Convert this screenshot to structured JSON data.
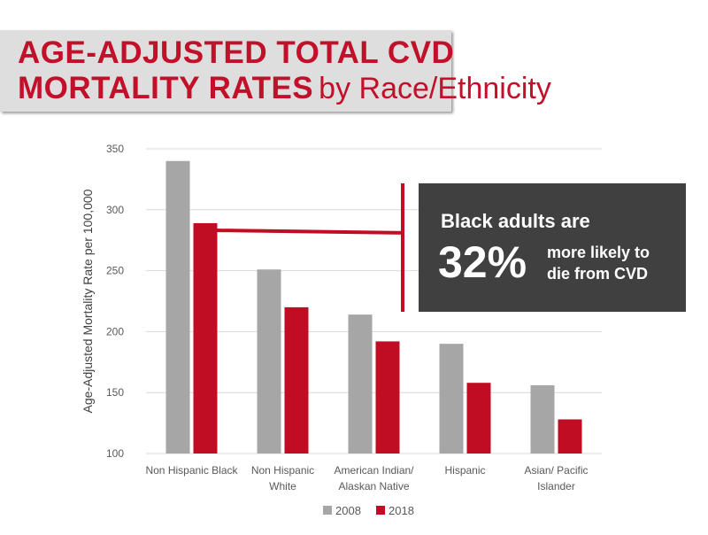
{
  "title": {
    "line1": "AGE-ADJUSTED TOTAL CVD",
    "line2_bold": "MORTALITY RATES",
    "line2_rest": "by Race/Ethnicity"
  },
  "callout": {
    "line1": "Black adults are",
    "percent": "32%",
    "line2": "more likely to",
    "line3": "die from CVD"
  },
  "colors": {
    "title": "#c3102a",
    "s2008": "#a6a6a6",
    "s2018": "#c00d23",
    "callout_bg": "#404040"
  },
  "chart_data": {
    "type": "bar",
    "categories": [
      [
        "Non Hispanic Black"
      ],
      [
        "Non Hispanic",
        "White"
      ],
      [
        "American Indian/",
        "Alaskan Native"
      ],
      [
        "Hispanic"
      ],
      [
        "Asian/ Pacific",
        "Islander"
      ]
    ],
    "series": [
      {
        "name": "2008",
        "values": [
          340,
          251,
          214,
          190,
          156
        ]
      },
      {
        "name": "2018",
        "values": [
          289,
          220,
          192,
          158,
          128
        ]
      }
    ],
    "ylabel": "Age-Adjusted Mortality Rate per 100,000",
    "ylim": [
      100,
      350
    ],
    "yticks": [
      "100",
      "150",
      "200",
      "250",
      "300",
      "350"
    ],
    "grid": true,
    "legend": "bottom"
  }
}
